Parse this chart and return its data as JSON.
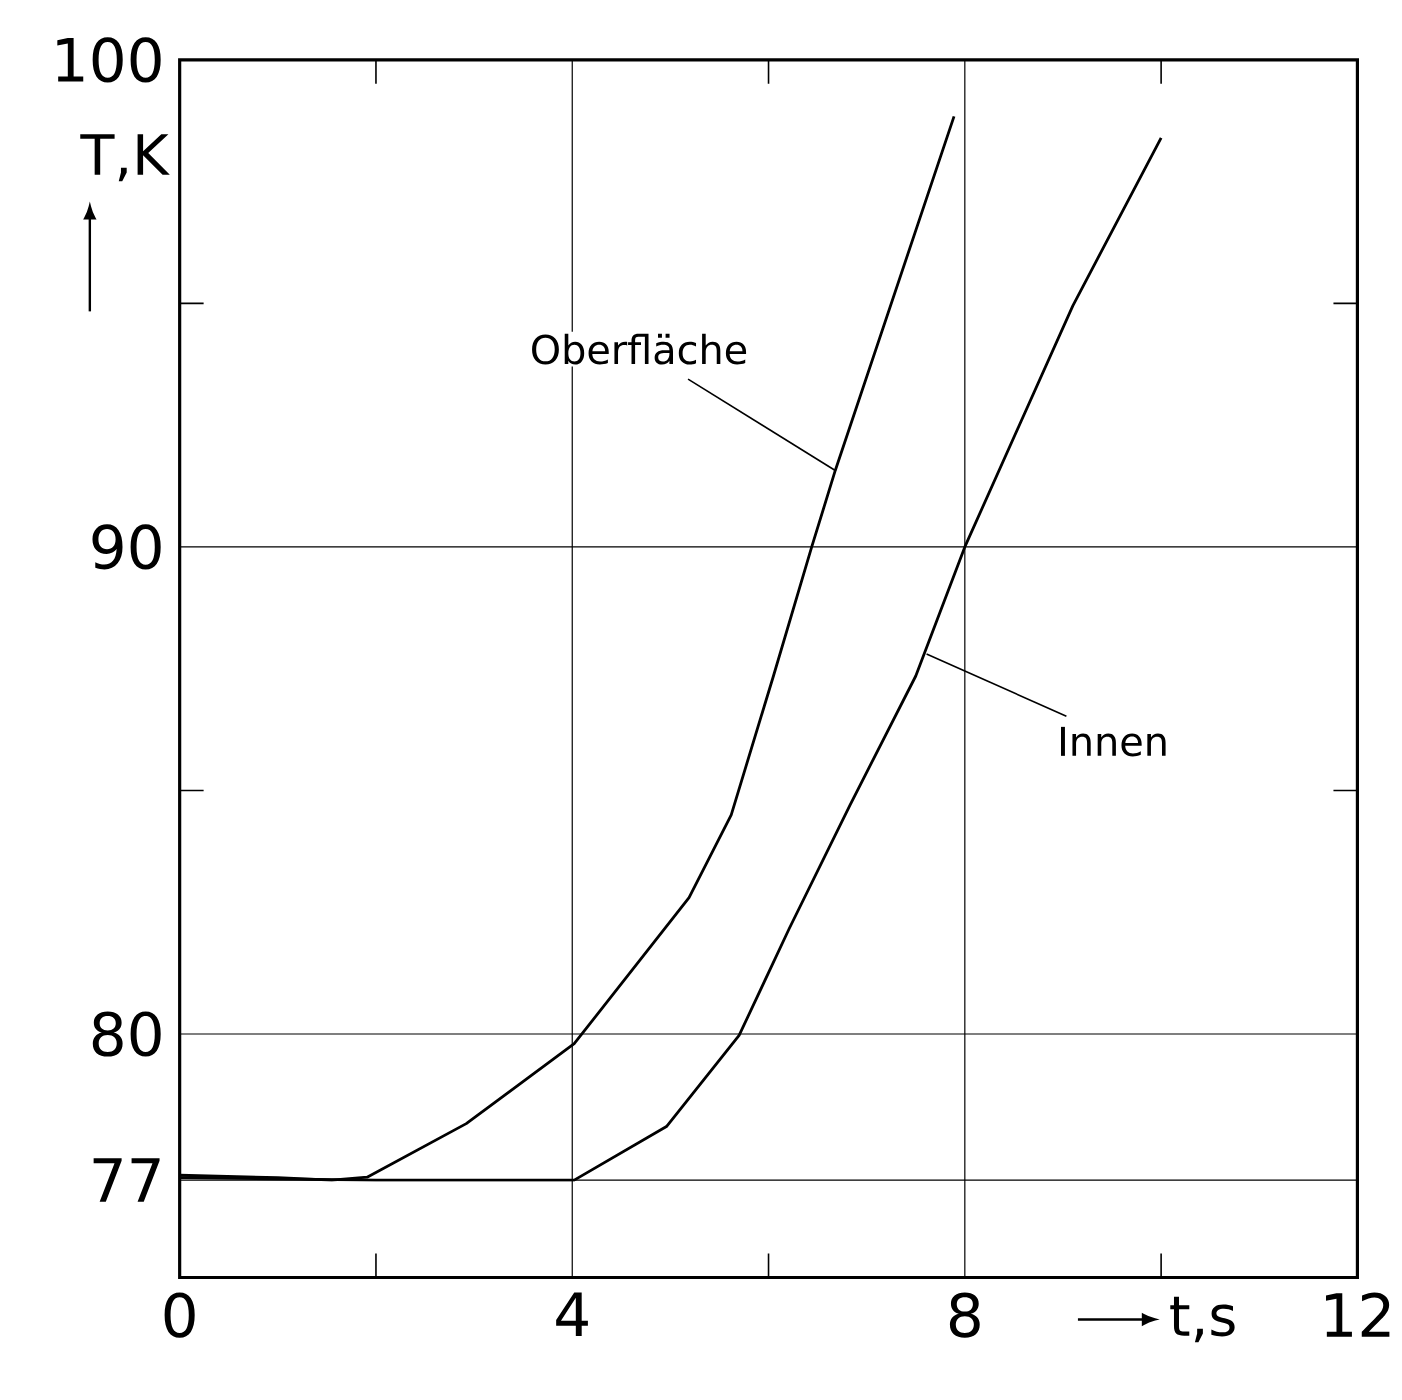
{
  "chart_data": {
    "type": "line",
    "xlabel": "t,s",
    "ylabel": "T,K",
    "xlim": [
      0,
      12
    ],
    "ylim": [
      75,
      100
    ],
    "xticks": [
      0,
      {
        "value": 2,
        "label": null
      },
      4,
      {
        "value": 6,
        "label": null
      },
      8,
      {
        "value": 10,
        "label": null
      },
      12
    ],
    "yticks": [
      77,
      80,
      {
        "value": 85,
        "label": null
      },
      90,
      {
        "value": 95,
        "label": null
      },
      100
    ],
    "grid": true,
    "marker": "none",
    "line_style": "solid",
    "series": [
      {
        "color": "#000000",
        "x": [
          0,
          1.0,
          1.55,
          1.91,
          2.92,
          4.02,
          5.19,
          5.62,
          6.05,
          6.44,
          6.68,
          7.89
        ],
        "values": [
          77.1,
          77.05,
          77.0,
          77.06,
          78.16,
          79.8,
          82.8,
          84.5,
          87.35,
          90,
          91.57,
          98.84
        ]
      },
      {
        "color": "#000000",
        "x": [
          0,
          2.0,
          4.02,
          4.96,
          5.7,
          6.21,
          6.83,
          7.5,
          8.0,
          9.1,
          10.0
        ],
        "values": [
          77.05,
          77.0,
          77.0,
          78.1,
          79.97,
          82.16,
          84.7,
          87.35,
          90,
          94.95,
          98.4
        ]
      }
    ],
    "annotations": [
      {
        "text": "Oberfläche",
        "x": 6.68,
        "y": 91.57
      },
      {
        "text": "Innen",
        "x": 7.61,
        "y": 87.8
      }
    ]
  }
}
